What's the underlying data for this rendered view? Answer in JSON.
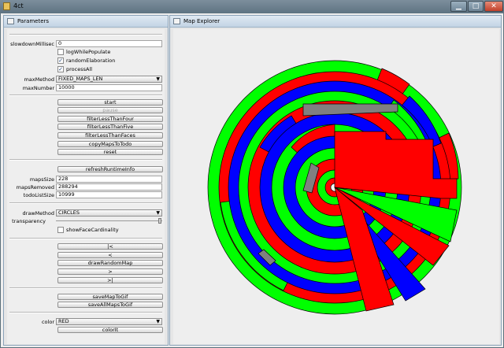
{
  "window": {
    "title": "4ct",
    "controls": {
      "minimize": "▁",
      "maximize": "□",
      "close": "✕"
    }
  },
  "parameters": {
    "title": "Parameters",
    "slowdown_label": "slowdownMillisec",
    "slowdown_value": "0",
    "log_label": "logWhilePopulate",
    "log_checked": false,
    "random_label": "randomElaboration",
    "random_checked": true,
    "process_label": "processAll",
    "process_checked": true,
    "maxmethod_label": "maxMethod",
    "maxmethod_value": "FIXED_MAPS_LEN",
    "maxnumber_label": "maxNumber",
    "maxnumber_value": "10000",
    "buttons": {
      "start": "start",
      "pause": "pause",
      "filter4": "filterLessThanFour",
      "filter5": "filterLessThanFive",
      "filterfaces": "filterLessThanFaces",
      "copy": "copyMapsToTodo",
      "reset": "reset",
      "refresh": "refreshRuntimeInfo",
      "first": "|<",
      "prev": "<",
      "random": "drawRandomMap",
      "next": ">",
      "last": ">|",
      "savegif": "saveMapToGif",
      "saveall": "saveAllMapsToGif",
      "colorit": "colorIt"
    },
    "mapssize_label": "mapsSize",
    "mapssize_value": "228",
    "removed_label": "mapsRemoved",
    "removed_value": "288294",
    "todo_label": "todoListSize",
    "todo_value": "10999",
    "drawmethod_label": "drawMethod",
    "drawmethod_value": "CIRCLES",
    "transparency_label": "transparency",
    "transparency_level": 1.0,
    "cardinality_label": "showFaceCardinality",
    "cardinality_checked": false,
    "color_label": "color",
    "color_value": "RED"
  },
  "explorer": {
    "title": "Map Explorer"
  },
  "palette": {
    "red": "#ff0000",
    "green": "#00ff00",
    "blue": "#0000ff",
    "gray": "#808080",
    "white": "#ffffff"
  }
}
